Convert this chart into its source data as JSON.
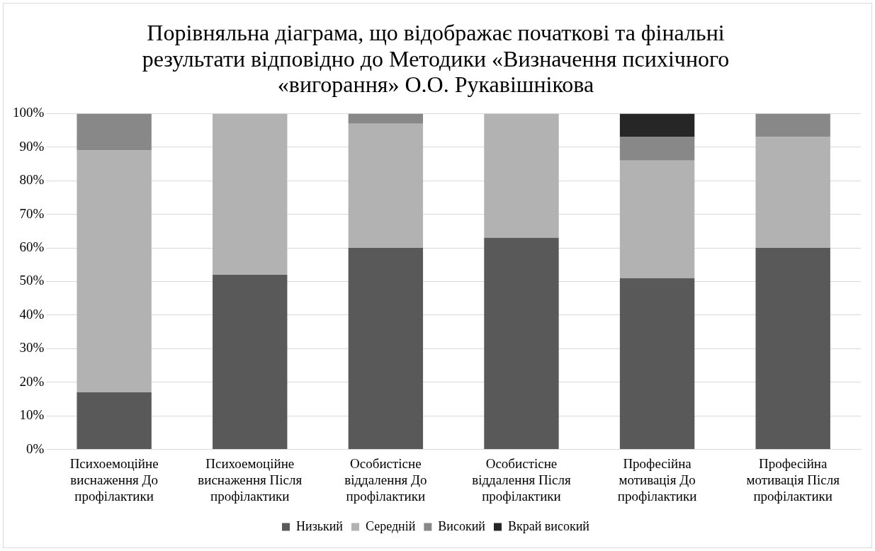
{
  "chart_data": {
    "type": "bar",
    "title": "Порівняльна діаграма, що відображає початкові та фінальні результати відповідно до Методики «Визначення психічного «вигорання» О.О. Рукавішнікова",
    "categories": [
      "Психоемоційне виснаження До профілактики",
      "Психоемоційне виснаження Після профілактики",
      "Особистісне віддалення До профілактики",
      "Особистісне віддалення Після профілактики",
      "Професійна мотивація До профілактики",
      "Професійна мотивація Після профілактики"
    ],
    "stacked": true,
    "series": [
      {
        "name": "Низький",
        "color": "#595959",
        "values": [
          17,
          52,
          60,
          63,
          51,
          60
        ]
      },
      {
        "name": "Середній",
        "color": "#b2b2b2",
        "values": [
          72,
          48,
          37,
          37,
          35,
          33
        ]
      },
      {
        "name": "Високий",
        "color": "#888888",
        "values": [
          11,
          0,
          3,
          0,
          7,
          7
        ]
      },
      {
        "name": "Вкрай високий",
        "color": "#262626",
        "values": [
          0,
          0,
          0,
          0,
          7,
          0
        ]
      }
    ],
    "ylim": [
      0,
      100
    ],
    "yticks": [
      {
        "value": 0,
        "label": "0%"
      },
      {
        "value": 10,
        "label": "10%"
      },
      {
        "value": 20,
        "label": "20%"
      },
      {
        "value": 30,
        "label": "30%"
      },
      {
        "value": 40,
        "label": "40%"
      },
      {
        "value": 50,
        "label": "50%"
      },
      {
        "value": 60,
        "label": "60%"
      },
      {
        "value": 70,
        "label": "70%"
      },
      {
        "value": 80,
        "label": "80%"
      },
      {
        "value": 90,
        "label": "90%"
      },
      {
        "value": 100,
        "label": "100%"
      }
    ],
    "grid": "y",
    "legend": "bottom"
  }
}
